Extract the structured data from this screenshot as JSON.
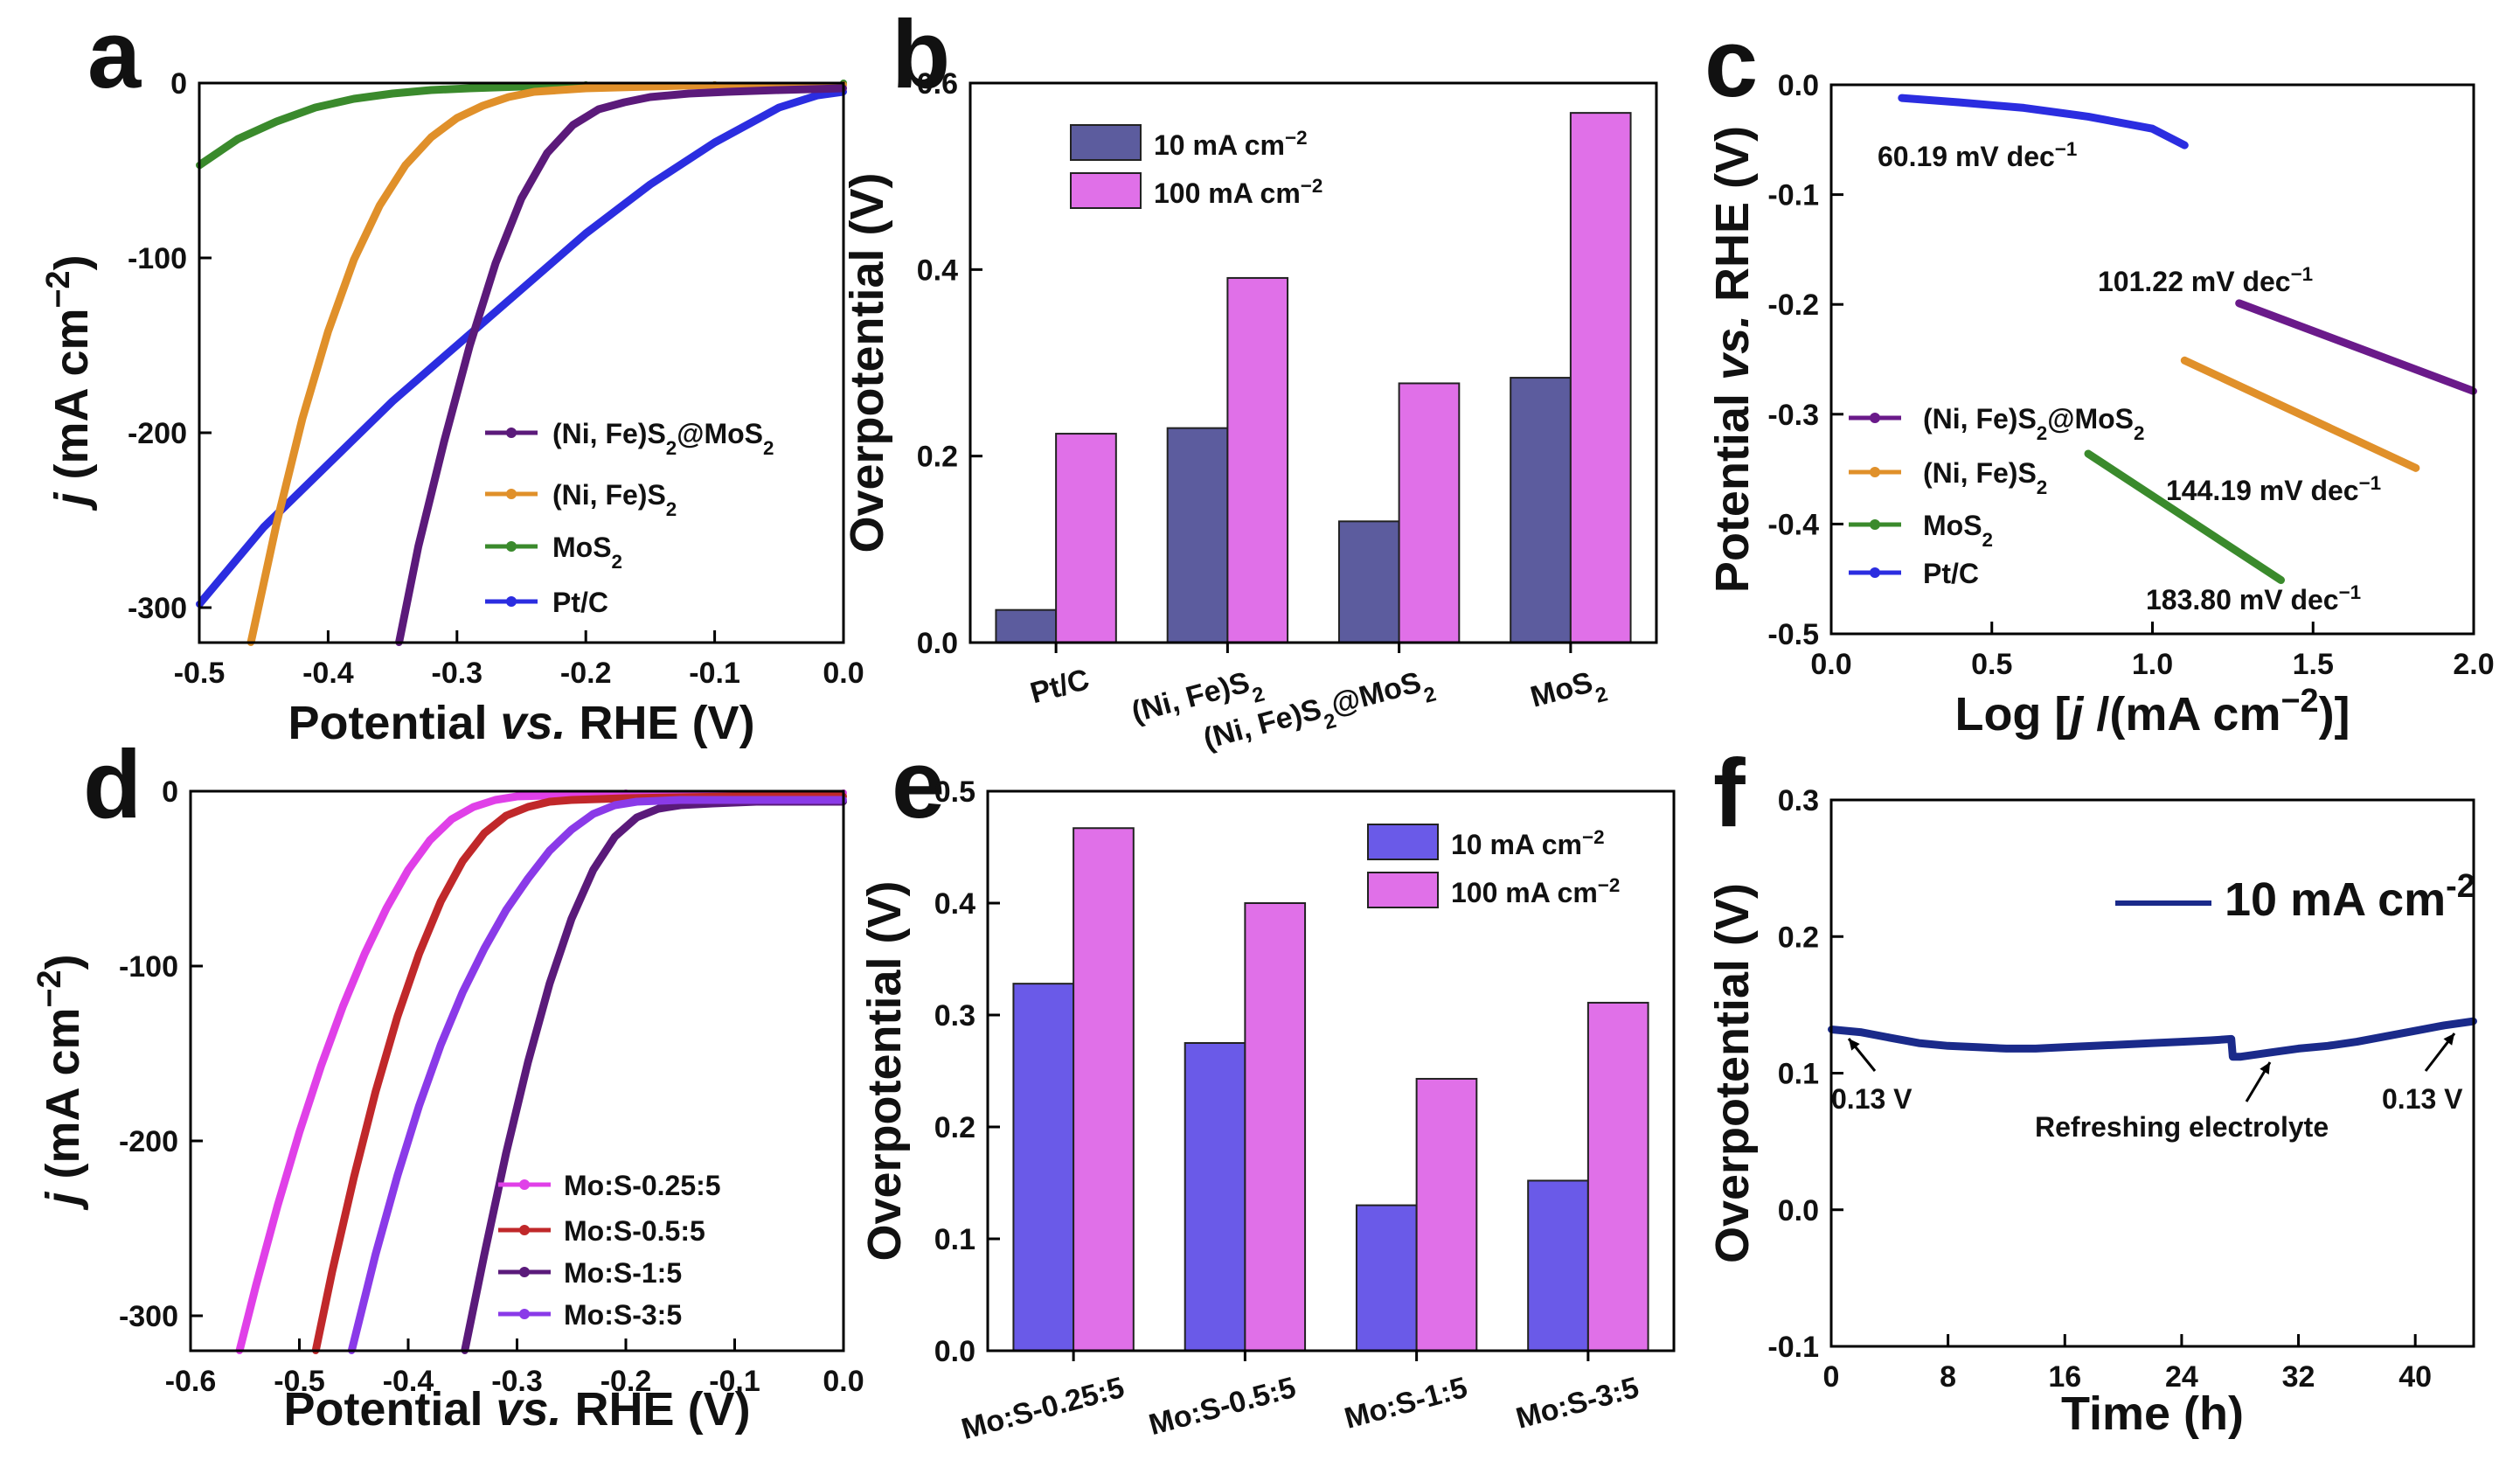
{
  "chart_data": [
    {
      "panel": "a",
      "type": "line",
      "xlabel": "Potential vs. RHE (V)",
      "ylabel": "j (mA cm−2)",
      "xlim": [
        -0.5,
        0.0
      ],
      "ylim": [
        -320,
        0
      ],
      "xticks": [
        "-0.5",
        "-0.4",
        "-0.3",
        "-0.2",
        "-0.1",
        "0.0"
      ],
      "yticks": [
        "-300",
        "-200",
        "-100",
        "0"
      ],
      "series": [
        {
          "name": "(Ni, Fe)S2@MoS2",
          "color": "#5b1a7a",
          "x": [
            -0.345,
            -0.33,
            -0.31,
            -0.29,
            -0.27,
            -0.25,
            -0.23,
            -0.21,
            -0.19,
            -0.17,
            -0.15,
            -0.12,
            -0.09,
            -0.05,
            0.0
          ],
          "y": [
            -320,
            -265,
            -205,
            -150,
            -103,
            -66,
            -40,
            -24,
            -15,
            -11,
            -8,
            -6,
            -5,
            -4,
            -3
          ]
        },
        {
          "name": "(Ni, Fe)S2",
          "color": "#e0902a",
          "x": [
            -0.46,
            -0.44,
            -0.42,
            -0.4,
            -0.38,
            -0.36,
            -0.34,
            -0.32,
            -0.3,
            -0.28,
            -0.26,
            -0.24,
            -0.2,
            -0.15,
            -0.1,
            0.0
          ],
          "y": [
            -320,
            -252,
            -192,
            -142,
            -101,
            -70,
            -47,
            -31,
            -20,
            -13,
            -8,
            -5,
            -3,
            -2,
            -1,
            -1
          ]
        },
        {
          "name": "MoS2",
          "color": "#3a8a2c",
          "x": [
            -0.5,
            -0.47,
            -0.44,
            -0.41,
            -0.38,
            -0.35,
            -0.32,
            -0.29,
            -0.25,
            -0.2,
            -0.1,
            0.0
          ],
          "y": [
            -47,
            -32,
            -22,
            -14,
            -9,
            -6,
            -4,
            -3,
            -2,
            -1,
            -1,
            0
          ]
        },
        {
          "name": "Pt/C",
          "color": "#2b2de0",
          "x": [
            -0.5,
            -0.45,
            -0.4,
            -0.35,
            -0.3,
            -0.25,
            -0.2,
            -0.15,
            -0.1,
            -0.05,
            -0.02,
            0.0
          ],
          "y": [
            -298,
            -254,
            -218,
            -182,
            -150,
            -118,
            -86,
            -58,
            -34,
            -14,
            -7,
            -5
          ]
        }
      ],
      "legend": [
        "(Ni, Fe)S2@MoS2",
        "(Ni, Fe)S2",
        "MoS2",
        "Pt/C"
      ]
    },
    {
      "panel": "b",
      "type": "bar",
      "ylabel": "Overpotential (V)",
      "ylim": [
        0.0,
        0.6
      ],
      "yticks": [
        "0.0",
        "0.2",
        "0.4",
        "0.6"
      ],
      "categories": [
        "Pt/C",
        "(Ni, Fe)S2",
        "(Ni, Fe)S2@MoS2",
        "MoS2"
      ],
      "series": [
        {
          "name": "10 mA cm−2",
          "color": "#5c5c9e",
          "values": [
            0.035,
            0.23,
            0.13,
            0.284
          ]
        },
        {
          "name": "100 mA cm−2",
          "color": "#e070e8",
          "values": [
            0.224,
            0.391,
            0.278,
            0.568
          ]
        }
      ]
    },
    {
      "panel": "c",
      "type": "line",
      "xlabel": "Log [j /(mA cm−2)]",
      "ylabel": "Potential vs. RHE (V)",
      "xlim": [
        0.0,
        2.0
      ],
      "ylim": [
        -0.5,
        0.0
      ],
      "xticks": [
        "0.0",
        "0.5",
        "1.0",
        "1.5",
        "2.0"
      ],
      "yticks": [
        "-0.5",
        "-0.4",
        "-0.3",
        "-0.2",
        "-0.1",
        "0.0"
      ],
      "series": [
        {
          "name": "(Ni, Fe)S2@MoS2",
          "color": "#6a1a8a",
          "x": [
            1.27,
            2.0
          ],
          "y": [
            -0.199,
            -0.279
          ]
        },
        {
          "name": "(Ni, Fe)S2",
          "color": "#e0902a",
          "x": [
            1.1,
            1.82
          ],
          "y": [
            -0.251,
            -0.349
          ]
        },
        {
          "name": "MoS2",
          "color": "#3a8a2c",
          "x": [
            0.8,
            1.4
          ],
          "y": [
            -0.336,
            -0.451
          ]
        },
        {
          "name": "Pt/C",
          "color": "#2b2de0",
          "x": [
            0.22,
            0.4,
            0.6,
            0.8,
            1.0,
            1.1
          ],
          "y": [
            -0.012,
            -0.016,
            -0.021,
            -0.029,
            -0.04,
            -0.055
          ]
        }
      ],
      "legend": [
        "(Ni, Fe)S2@MoS2",
        "(Ni, Fe)S2",
        "MoS2",
        "Pt/C"
      ],
      "annotations": [
        "60.19 mV dec−1",
        "101.22 mV dec−1",
        "144.19 mV dec−1",
        "183.80 mV dec−1"
      ]
    },
    {
      "panel": "d",
      "type": "line",
      "xlabel": "Potential vs. RHE (V)",
      "ylabel": "j (mA cm−2)",
      "xlim": [
        -0.6,
        0.0
      ],
      "ylim": [
        -320,
        0
      ],
      "xticks": [
        "-0.6",
        "-0.5",
        "-0.4",
        "-0.3",
        "-0.2",
        "-0.1",
        "0.0"
      ],
      "yticks": [
        "-300",
        "-200",
        "-100",
        "0"
      ],
      "series": [
        {
          "name": "Mo:S-0.25:5",
          "color": "#e040e8",
          "x": [
            -0.555,
            -0.54,
            -0.52,
            -0.5,
            -0.48,
            -0.46,
            -0.44,
            -0.42,
            -0.4,
            -0.38,
            -0.36,
            -0.34,
            -0.32,
            -0.3,
            -0.25,
            -0.2,
            0.0
          ],
          "y": [
            -320,
            -283,
            -237,
            -195,
            -157,
            -123,
            -93,
            -67,
            -45,
            -28,
            -16,
            -9,
            -5,
            -3,
            -2,
            -1,
            -1
          ]
        },
        {
          "name": "Mo:S-0.5:5",
          "color": "#c0282a",
          "x": [
            -0.485,
            -0.47,
            -0.45,
            -0.43,
            -0.41,
            -0.39,
            -0.37,
            -0.35,
            -0.33,
            -0.31,
            -0.29,
            -0.27,
            -0.25,
            -0.2,
            -0.1,
            0.0
          ],
          "y": [
            -320,
            -275,
            -221,
            -172,
            -129,
            -93,
            -63,
            -40,
            -24,
            -14,
            -9,
            -6,
            -5,
            -4,
            -3,
            -3
          ]
        },
        {
          "name": "Mo:S-1:5",
          "color": "#5a1a7a",
          "x": [
            -0.348,
            -0.33,
            -0.31,
            -0.29,
            -0.27,
            -0.25,
            -0.23,
            -0.21,
            -0.19,
            -0.17,
            -0.15,
            -0.12,
            -0.08,
            0.0
          ],
          "y": [
            -320,
            -265,
            -207,
            -155,
            -110,
            -73,
            -45,
            -26,
            -15,
            -10,
            -8,
            -7,
            -6,
            -6
          ]
        },
        {
          "name": "Mo:S-3:5",
          "color": "#8a3ae8",
          "x": [
            -0.452,
            -0.43,
            -0.41,
            -0.39,
            -0.37,
            -0.35,
            -0.33,
            -0.31,
            -0.29,
            -0.27,
            -0.25,
            -0.23,
            -0.21,
            -0.19,
            -0.15,
            -0.1,
            0.0
          ],
          "y": [
            -320,
            -265,
            -220,
            -180,
            -145,
            -115,
            -90,
            -68,
            -50,
            -34,
            -22,
            -13,
            -8,
            -6,
            -5,
            -5,
            -5
          ]
        }
      ],
      "legend": [
        "Mo:S-0.25:5",
        "Mo:S-0.5:5",
        "Mo:S-1:5",
        "Mo:S-3:5"
      ]
    },
    {
      "panel": "e",
      "type": "bar",
      "ylabel": "Overpotential (V)",
      "ylim": [
        0.0,
        0.5
      ],
      "yticks": [
        "0.0",
        "0.1",
        "0.2",
        "0.3",
        "0.4",
        "0.5"
      ],
      "categories": [
        "Mo:S-0.25:5",
        "Mo:S-0.5:5",
        "Mo:S-1:5",
        "Mo:S-3:5"
      ],
      "series": [
        {
          "name": "10 mA cm−2",
          "color": "#6a5ae8",
          "values": [
            0.328,
            0.275,
            0.13,
            0.152
          ]
        },
        {
          "name": "100 mA cm−2",
          "color": "#e070e8",
          "values": [
            0.467,
            0.4,
            0.243,
            0.311
          ]
        }
      ]
    },
    {
      "panel": "f",
      "type": "line",
      "xlabel": "Time (h)",
      "ylabel": "Overpotential (V)",
      "xlim": [
        0,
        44
      ],
      "ylim": [
        -0.1,
        0.3
      ],
      "xticks": [
        "0",
        "8",
        "16",
        "24",
        "32",
        "40"
      ],
      "yticks": [
        "-0.1",
        "0.0",
        "0.1",
        "0.2",
        "0.3"
      ],
      "series": [
        {
          "name": "10 mA cm−2",
          "color": "#1a2a8a",
          "x": [
            0,
            2,
            4,
            6,
            8,
            10,
            12,
            14,
            16,
            18,
            20,
            22,
            24,
            26,
            27.4,
            27.5,
            28,
            30,
            32,
            34,
            36,
            38,
            40,
            42,
            44
          ],
          "y": [
            0.132,
            0.13,
            0.126,
            0.122,
            0.12,
            0.119,
            0.118,
            0.118,
            0.119,
            0.12,
            0.121,
            0.122,
            0.123,
            0.124,
            0.125,
            0.112,
            0.112,
            0.115,
            0.118,
            0.12,
            0.123,
            0.127,
            0.131,
            0.135,
            0.138
          ]
        }
      ],
      "annotations": [
        "0.13 V",
        "Refreshing electrolyte",
        "0.13 V"
      ]
    }
  ],
  "panel_labels": [
    "a",
    "b",
    "c",
    "d",
    "e",
    "f"
  ],
  "labels": {
    "a": {
      "xlabel_pre": "Potential ",
      "xlabel_it": "vs.",
      "xlabel_post": " RHE (V)",
      "ylabel_it": "j",
      "ylabel_post": " (mA cm",
      "ylabel_sup": "−2",
      "ylabel_close": ")",
      "legend": [
        {
          "t": "(Ni, Fe)S",
          "s1": "2",
          "t2": "@MoS",
          "s2": "2"
        },
        {
          "t": "(Ni, Fe)S",
          "s1": "2",
          "t2": "",
          "s2": ""
        },
        {
          "t": "MoS",
          "s1": "2",
          "t2": "",
          "s2": ""
        },
        {
          "t": "Pt/C",
          "s1": "",
          "t2": "",
          "s2": ""
        }
      ]
    },
    "b": {
      "ylabel": "Overpotential (V)",
      "legend": [
        {
          "t": "10 mA cm",
          "sup": "−2"
        },
        {
          "t": "100 mA cm",
          "sup": "−2"
        }
      ],
      "cats": [
        {
          "t": "Pt/C",
          "s1": "",
          "t2": "",
          "s2": ""
        },
        {
          "t": "(Ni, Fe)S",
          "s1": "2",
          "t2": "",
          "s2": ""
        },
        {
          "t": "(Ni, Fe)S",
          "s1": "2",
          "t2": "@MoS",
          "s2": "2"
        },
        {
          "t": "MoS",
          "s1": "2",
          "t2": "",
          "s2": ""
        }
      ]
    },
    "c": {
      "xlabel_pre": "Log [",
      "xlabel_it": "j",
      "xlabel_mid": " /(mA cm",
      "xlabel_sup": "−2",
      "xlabel_close": ")]",
      "ylabel_pre": "Potential ",
      "ylabel_it": "vs.",
      "ylabel_post": " RHE (V)",
      "legend": [
        {
          "t": "(Ni, Fe)S",
          "s1": "2",
          "t2": "@MoS",
          "s2": "2"
        },
        {
          "t": "(Ni, Fe)S",
          "s1": "2",
          "t2": "",
          "s2": ""
        },
        {
          "t": "MoS",
          "s1": "2",
          "t2": "",
          "s2": ""
        },
        {
          "t": "Pt/C",
          "s1": "",
          "t2": "",
          "s2": ""
        }
      ],
      "ann": [
        {
          "t": "60.19 mV dec",
          "sup": "−1"
        },
        {
          "t": "101.22 mV dec",
          "sup": "−1"
        },
        {
          "t": "144.19 mV dec",
          "sup": "−1"
        },
        {
          "t": "183.80 mV dec",
          "sup": "−1"
        }
      ]
    },
    "d": {
      "xlabel_pre": "Potential ",
      "xlabel_it": "vs.",
      "xlabel_post": " RHE (V)",
      "ylabel_it": "j",
      "ylabel_post": " (mA cm",
      "ylabel_sup": "−2",
      "ylabel_close": ")",
      "legend": [
        "Mo:S-0.25:5",
        "Mo:S-0.5:5",
        "Mo:S-1:5",
        "Mo:S-3:5"
      ]
    },
    "e": {
      "ylabel": "Overpotential (V)",
      "legend": [
        {
          "t": "10 mA cm",
          "sup": "−2"
        },
        {
          "t": "100 mA cm",
          "sup": "−2"
        }
      ],
      "cats": [
        "Mo:S-0.25:5",
        "Mo:S-0.5:5",
        "Mo:S-1:5",
        "Mo:S-3:5"
      ]
    },
    "f": {
      "xlabel": "Time (h)",
      "ylabel": "Overpotential (V)",
      "legend": {
        "t": "10 mA cm",
        "sup": "-2"
      },
      "ann": [
        "0.13 V",
        "Refreshing electrolyte",
        "0.13 V"
      ]
    }
  }
}
